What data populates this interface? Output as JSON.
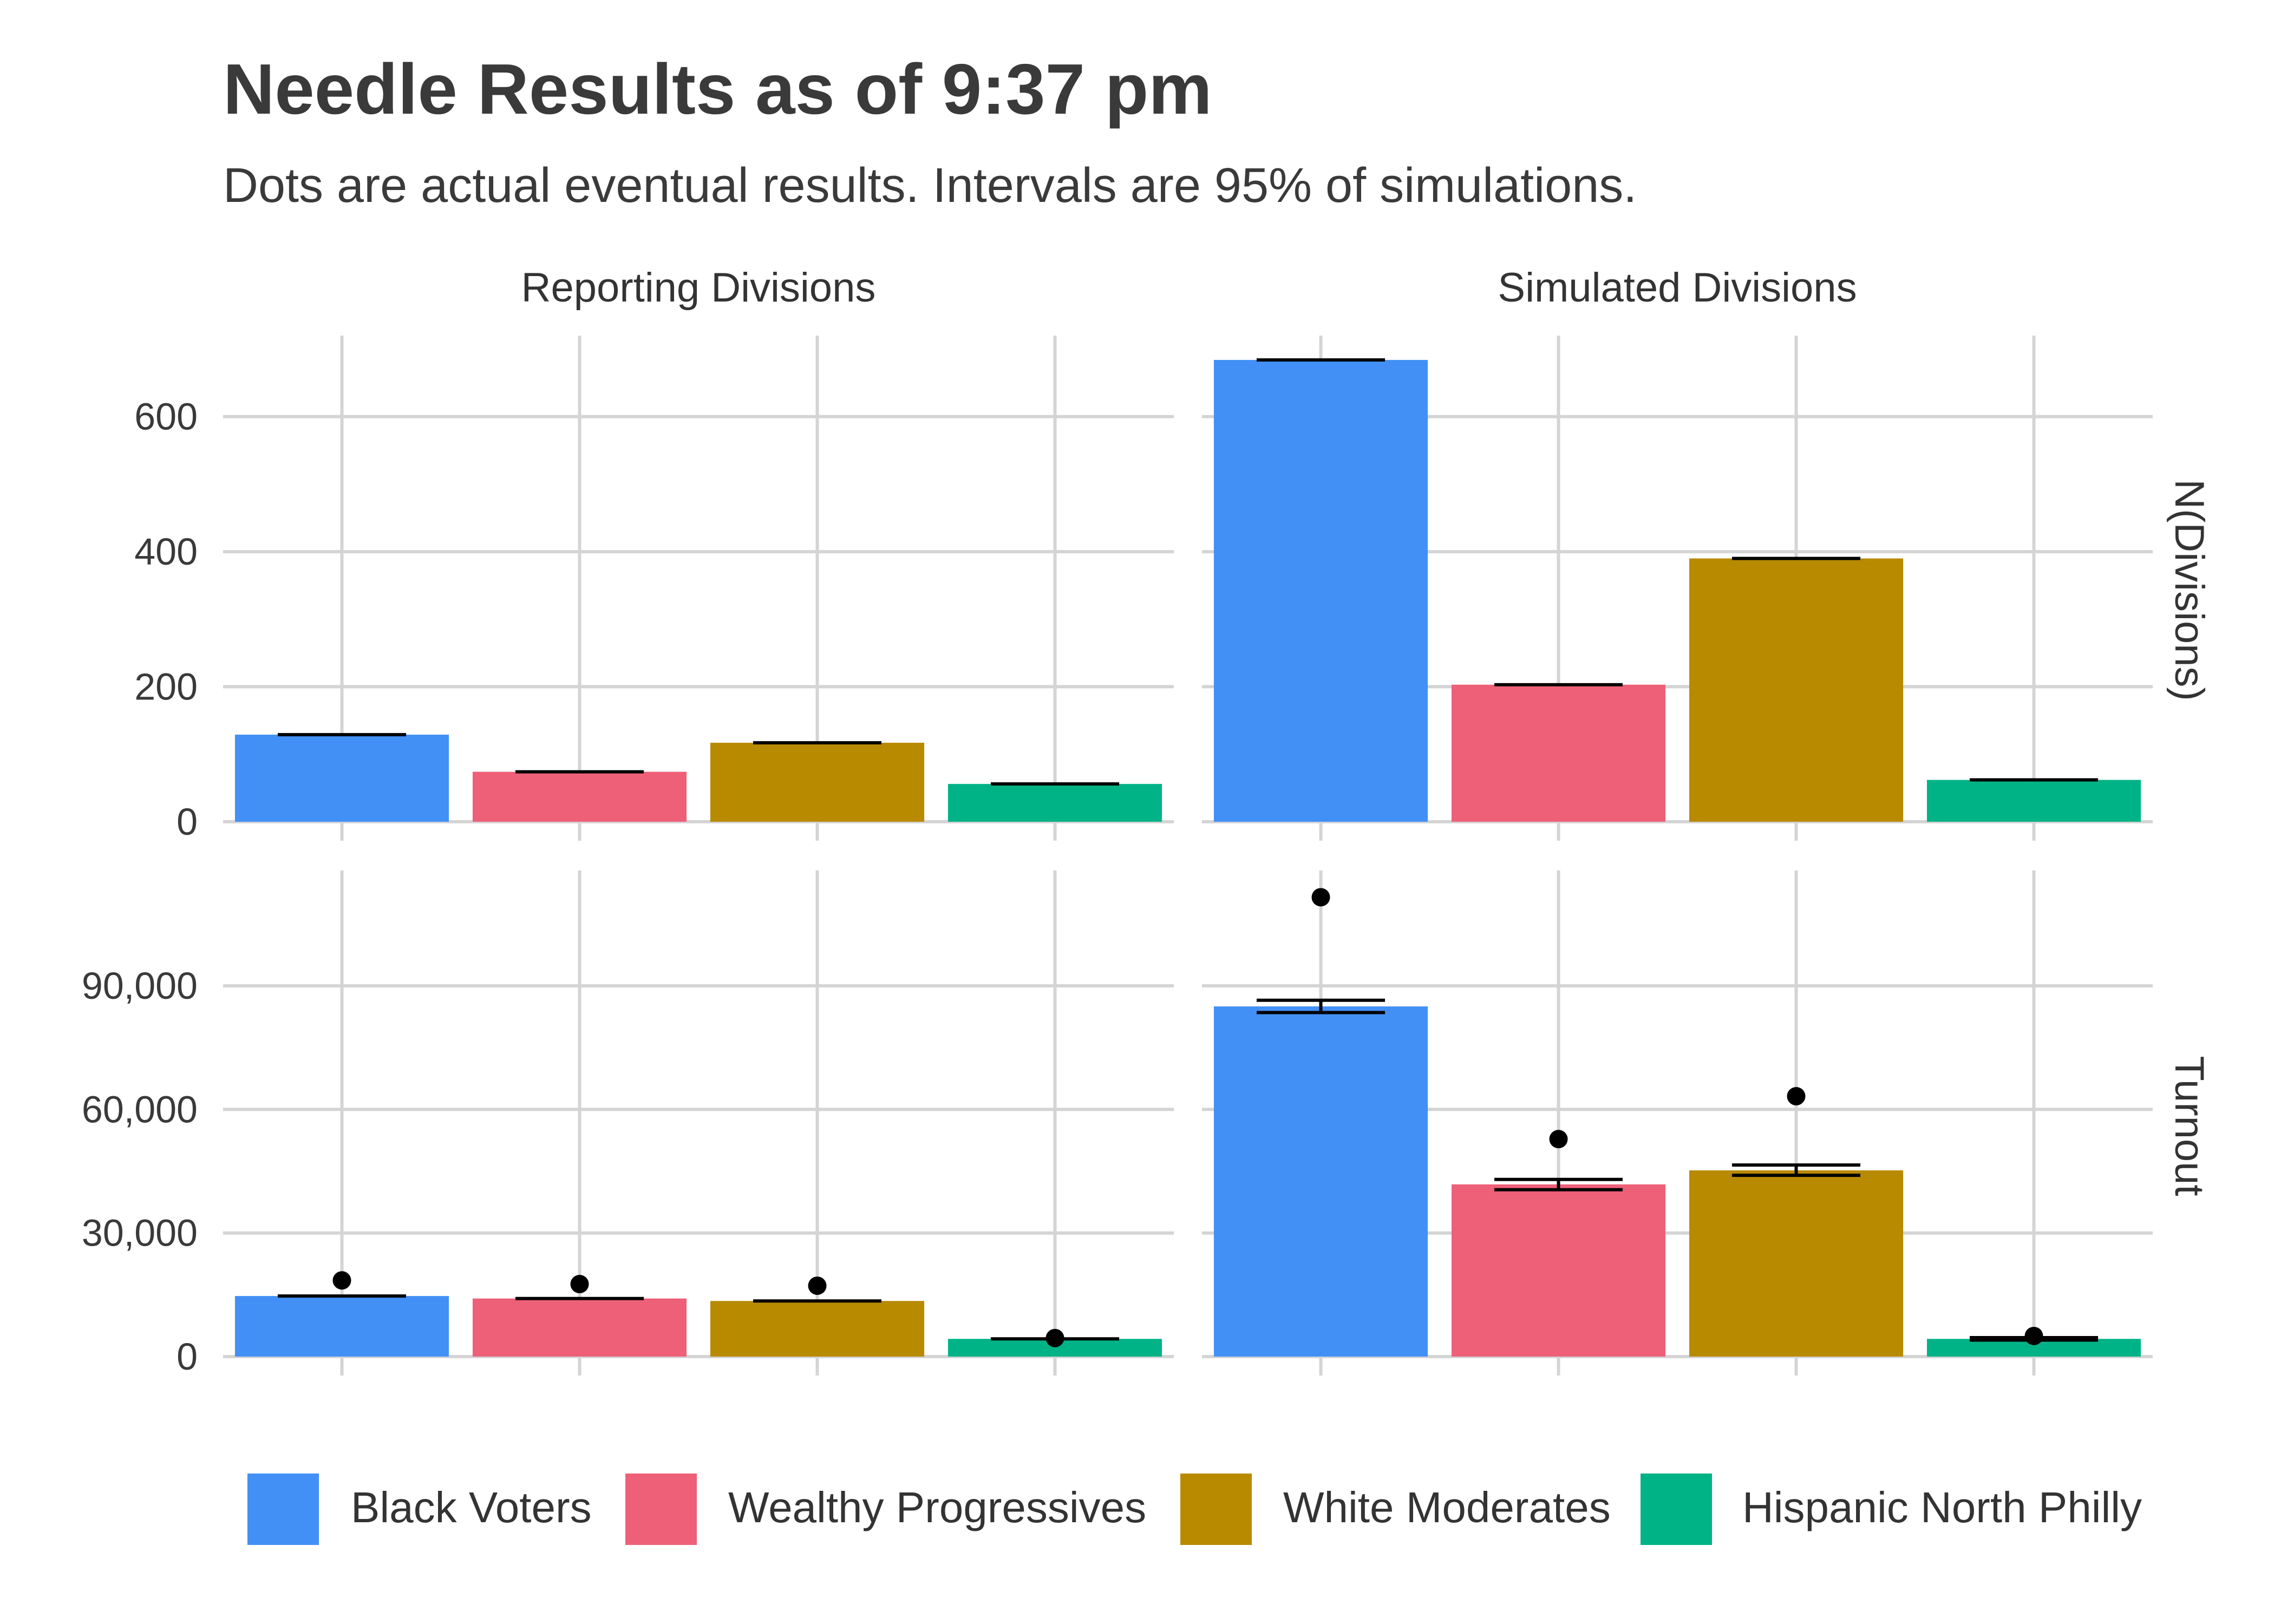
{
  "chart_data": {
    "type": "bar",
    "title": "Needle Results as of 9:37 pm",
    "subtitle": "Dots are actual eventual results. Intervals are 95% of simulations.",
    "columns": [
      "Reporting Divisions",
      "Simulated Divisions"
    ],
    "rows": [
      "N(Divisions)",
      "Turnout"
    ],
    "categories": [
      "Black Voters",
      "Wealthy Progressives",
      "White Moderates",
      "Hispanic North Philly"
    ],
    "colors": [
      "#4290F5",
      "#EE6078",
      "#B88A00",
      "#00B386"
    ],
    "grid": true,
    "legend_position": "bottom",
    "panels": [
      {
        "row": "N(Divisions)",
        "column": "Reporting Divisions",
        "ylim": [
          0,
          720
        ],
        "yticks": [
          0,
          200,
          400,
          600
        ],
        "ytick_labels": [
          "0",
          "200",
          "400",
          "600"
        ],
        "values": [
          129,
          74,
          117,
          56
        ],
        "interval_low": [
          129,
          74,
          117,
          56
        ],
        "interval_high": [
          129,
          74,
          117,
          56
        ],
        "actual": [
          null,
          null,
          null,
          null
        ]
      },
      {
        "row": "N(Divisions)",
        "column": "Simulated Divisions",
        "ylim": [
          0,
          720
        ],
        "yticks": [
          0,
          200,
          400,
          600
        ],
        "ytick_labels": [
          "0",
          "200",
          "400",
          "600"
        ],
        "values": [
          684,
          203,
          390,
          62
        ],
        "interval_low": [
          684,
          203,
          390,
          62
        ],
        "interval_high": [
          684,
          203,
          390,
          62
        ],
        "actual": [
          null,
          null,
          null,
          null
        ]
      },
      {
        "row": "Turnout",
        "column": "Reporting Divisions",
        "ylim": [
          0,
          118000
        ],
        "yticks": [
          0,
          30000,
          60000,
          90000
        ],
        "ytick_labels": [
          "0",
          "30,000",
          "60,000",
          "90,000"
        ],
        "values": [
          14700,
          14100,
          13500,
          4300
        ],
        "interval_low": [
          14700,
          14100,
          13500,
          4300
        ],
        "interval_high": [
          14700,
          14100,
          13500,
          4300
        ],
        "actual": [
          18500,
          17600,
          17200,
          4500
        ]
      },
      {
        "row": "Turnout",
        "column": "Simulated Divisions",
        "ylim": [
          0,
          118000
        ],
        "yticks": [
          0,
          30000,
          60000,
          90000
        ],
        "ytick_labels": [
          "0",
          "30,000",
          "60,000",
          "90,000"
        ],
        "values": [
          85000,
          41800,
          45200,
          4300
        ],
        "interval_low": [
          83500,
          40500,
          44000,
          4000
        ],
        "interval_high": [
          86500,
          43000,
          46500,
          4600
        ],
        "actual": [
          111500,
          52800,
          63200,
          5000
        ]
      }
    ]
  }
}
